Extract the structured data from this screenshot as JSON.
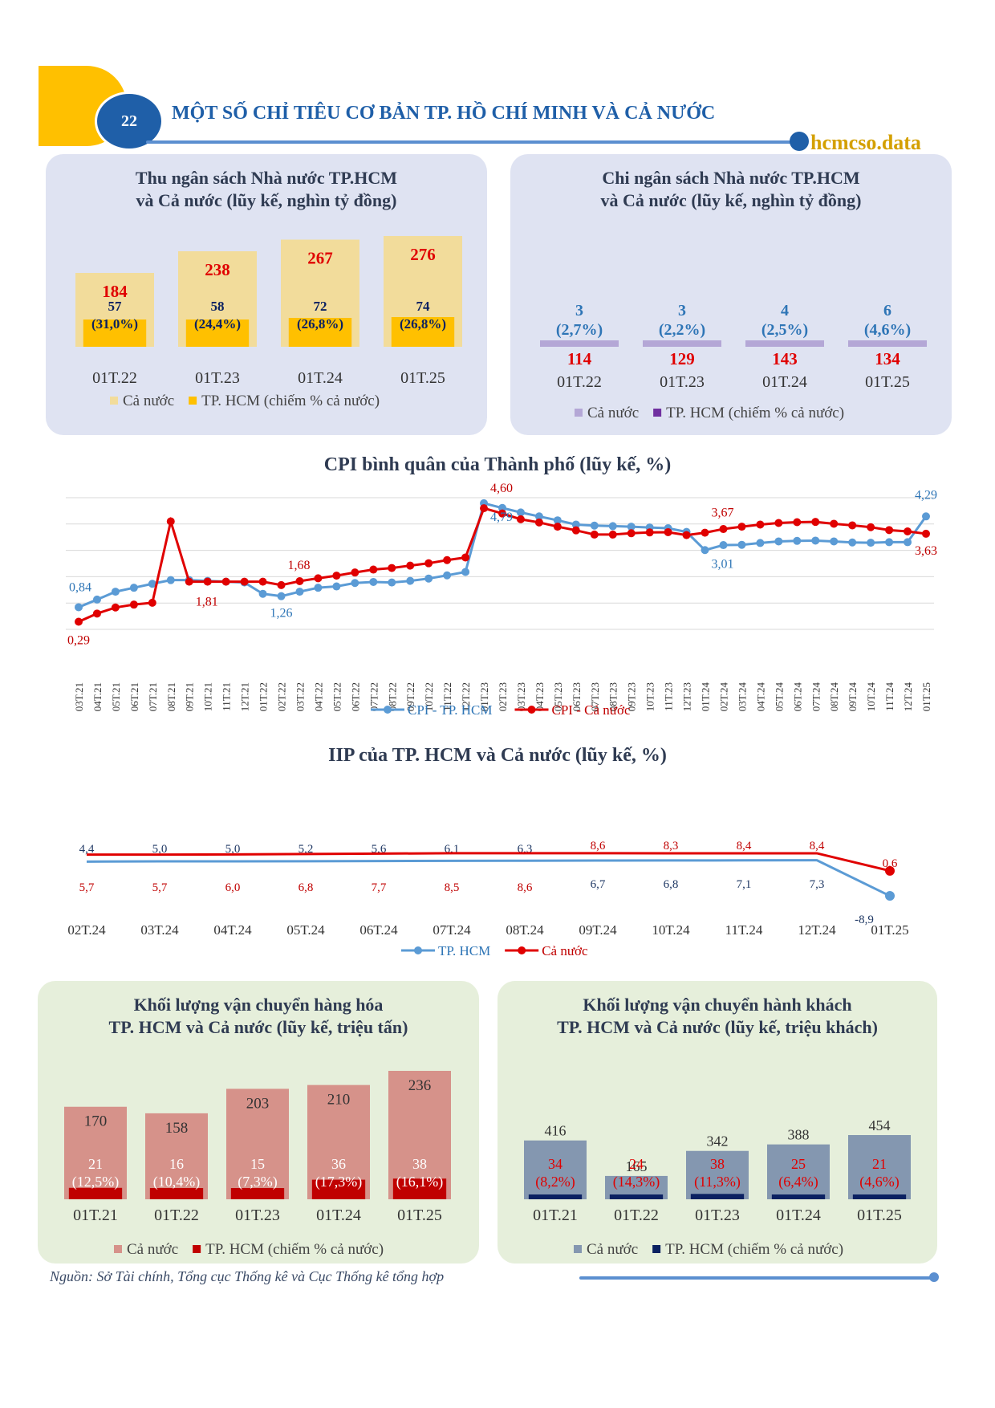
{
  "header": {
    "page_number": "22",
    "title": "MỘT SỐ CHỈ TIÊU CƠ BẢN TP. HỒ CHÍ MINH VÀ CẢ NƯỚC",
    "brand": "hcmcso.data",
    "accent": "#1f5fa8",
    "tab_color": "#ffc000"
  },
  "chart_data": [
    {
      "type": "bar",
      "title": "Thu ngân sách Nhà nước TP.HCM\nvà Cả nước (lũy kế, nghìn tỷ đồng)",
      "categories": [
        "01T.22",
        "01T.23",
        "01T.24",
        "01T.25"
      ],
      "series": [
        {
          "name": "Cả nước",
          "values": [
            184,
            238,
            267,
            276
          ],
          "color": "#f2dc9b"
        },
        {
          "name": "TP. HCM (chiếm % cả nước)",
          "values": [
            57,
            58,
            72,
            74
          ],
          "share": [
            "(31,0%)",
            "(24,4%)",
            "(26,8%)",
            "(26,8%)"
          ],
          "color": "#ffc000"
        }
      ]
    },
    {
      "type": "bar",
      "title": "Chi ngân sách Nhà nước TP.HCM\nvà Cả nước (lũy kế, nghìn tỷ đồng)",
      "categories": [
        "01T.22",
        "01T.23",
        "01T.24",
        "01T.25"
      ],
      "series": [
        {
          "name": "Cả nước",
          "values": [
            114,
            129,
            143,
            134
          ],
          "color": "#b4a7d6"
        },
        {
          "name": "TP. HCM (chiếm % cả nước)",
          "values": [
            3,
            3,
            4,
            6
          ],
          "share": [
            "(2,7%)",
            "(2,2%)",
            "(2,5%)",
            "(4,6%)"
          ],
          "color": "#7030a0"
        }
      ]
    },
    {
      "type": "line",
      "title": "CPI bình quân của Thành phố (lũy kế, %)",
      "categories": [
        "03T.21",
        "04T.21",
        "05T.21",
        "06T.21",
        "07T.21",
        "08T.21",
        "09T.21",
        "10T.21",
        "11T.21",
        "12T.21",
        "01T.22",
        "02T.22",
        "03T.22",
        "04T.22",
        "05T.22",
        "06T.22",
        "07T.22",
        "08T.22",
        "09T.22",
        "10T.22",
        "11T.22",
        "12T.22",
        "01T.23",
        "02T.23",
        "03T.23",
        "04T.23",
        "05T.23",
        "06T.23",
        "07T.23",
        "08T.23",
        "09T.23",
        "10T.23",
        "11T.23",
        "12T.23",
        "01T.24",
        "02T.24",
        "03T.24",
        "04T.24",
        "05T.24",
        "06T.24",
        "07T.24",
        "08T.24",
        "09T.24",
        "10T.24",
        "11T.24",
        "12T.24",
        "01T.25"
      ],
      "series": [
        {
          "name": "CPI - TP. HCM",
          "color": "#5b9bd5",
          "values": [
            0.84,
            1.13,
            1.43,
            1.58,
            1.73,
            1.87,
            1.87,
            1.84,
            1.81,
            1.78,
            1.35,
            1.26,
            1.43,
            1.58,
            1.63,
            1.76,
            1.8,
            1.78,
            1.84,
            1.93,
            2.05,
            2.18,
            4.79,
            4.61,
            4.44,
            4.29,
            4.14,
            3.98,
            3.94,
            3.92,
            3.9,
            3.87,
            3.84,
            3.7,
            3.01,
            3.2,
            3.21,
            3.28,
            3.34,
            3.36,
            3.37,
            3.34,
            3.3,
            3.29,
            3.31,
            3.31,
            4.29
          ]
        },
        {
          "name": "CPI - Cả nước",
          "color": "#e00000",
          "values": [
            0.29,
            0.6,
            0.83,
            0.94,
            1.01,
            4.1,
            1.81,
            1.81,
            1.81,
            1.81,
            1.81,
            1.68,
            1.83,
            1.94,
            2.04,
            2.16,
            2.27,
            2.33,
            2.42,
            2.51,
            2.63,
            2.73,
            4.6,
            4.4,
            4.18,
            4.06,
            3.9,
            3.76,
            3.6,
            3.6,
            3.65,
            3.68,
            3.69,
            3.58,
            3.67,
            3.81,
            3.9,
            3.98,
            4.04,
            4.07,
            4.08,
            4.01,
            3.95,
            3.88,
            3.77,
            3.72,
            3.63
          ]
        }
      ],
      "point_labels": [
        {
          "series": "CPI - TP. HCM",
          "category": "03T.21",
          "text": "0,84"
        },
        {
          "series": "CPI - TP. HCM",
          "category": "02T.22",
          "text": "1,26"
        },
        {
          "series": "CPI - TP. HCM",
          "category": "01T.23",
          "text": "4,79"
        },
        {
          "series": "CPI - TP. HCM",
          "category": "01T.24",
          "text": "3,01"
        },
        {
          "series": "CPI - TP. HCM",
          "category": "01T.25",
          "text": "4,29"
        },
        {
          "series": "CPI - Cả nước",
          "category": "03T.21",
          "text": "0,29"
        },
        {
          "series": "CPI - Cả nước",
          "category": "09T.21",
          "text": "1,81"
        },
        {
          "series": "CPI - Cả nước",
          "category": "02T.22",
          "text": "1,68"
        },
        {
          "series": "CPI - Cả nước",
          "category": "01T.23",
          "text": "4,60"
        },
        {
          "series": "CPI - Cả nước",
          "category": "01T.24",
          "text": "3,67"
        },
        {
          "series": "CPI - Cả nước",
          "category": "01T.25",
          "text": "3,63"
        }
      ]
    },
    {
      "type": "line",
      "title": "IIP của TP. HCM và Cả nước (lũy kế, %)",
      "categories": [
        "02T.24",
        "03T.24",
        "04T.24",
        "05T.24",
        "06T.24",
        "07T.24",
        "08T.24",
        "09T.24",
        "10T.24",
        "11T.24",
        "12T.24",
        "01T.25"
      ],
      "series": [
        {
          "name": "TP. HCM",
          "color": "#5b9bd5",
          "values": [
            4.4,
            5.0,
            5.0,
            5.2,
            5.6,
            6.1,
            6.3,
            6.7,
            6.8,
            7.1,
            7.3,
            -8.9
          ],
          "labels": [
            "4,4",
            "5,0",
            "5,0",
            "5,2",
            "5,6",
            "6,1",
            "6,3",
            "6,7",
            "6,8",
            "7,1",
            "7,3",
            "-8,9"
          ]
        },
        {
          "name": "Cả nước",
          "color": "#e00000",
          "values": [
            5.7,
            5.7,
            6.0,
            6.8,
            7.7,
            8.5,
            8.6,
            8.6,
            8.3,
            8.4,
            8.4,
            0.6
          ],
          "labels": [
            "5,7",
            "5,7",
            "6,0",
            "6,8",
            "7,7",
            "8,5",
            "8,6",
            "8,6",
            "8,3",
            "8,4",
            "8,4",
            "0,6"
          ]
        }
      ]
    },
    {
      "type": "bar",
      "title": "Khối lượng vận chuyển hàng hóa\nTP. HCM và Cả nước (lũy kế, triệu tấn)",
      "categories": [
        "01T.21",
        "01T.22",
        "01T.23",
        "01T.24",
        "01T.25"
      ],
      "series": [
        {
          "name": "Cả nước",
          "values": [
            170,
            158,
            203,
            210,
            236
          ],
          "color": "#d6928a"
        },
        {
          "name": "TP. HCM (chiếm % cả nước)",
          "values": [
            21,
            16,
            15,
            36,
            38
          ],
          "share": [
            "(12,5%)",
            "(10,4%)",
            "(7,3%)",
            "(17,3%)",
            "(16,1%)"
          ],
          "color": "#c00000"
        }
      ]
    },
    {
      "type": "bar",
      "title": "Khối lượng vận chuyển hành khách\nTP. HCM và Cả nước (lũy kế, triệu khách)",
      "categories": [
        "01T.21",
        "01T.22",
        "01T.23",
        "01T.24",
        "01T.25"
      ],
      "series": [
        {
          "name": "Cả nước",
          "values": [
            416,
            165,
            342,
            388,
            454
          ],
          "color": "#8497b0"
        },
        {
          "name": "TP. HCM (chiếm % cả nước)",
          "values": [
            34,
            24,
            38,
            25,
            21
          ],
          "share": [
            "(8,2%)",
            "(14,3%)",
            "(11,3%)",
            "(6,4%)",
            "(4,6%)"
          ],
          "color": "#0b2161"
        }
      ]
    }
  ],
  "footer": {
    "source": "Nguồn: Sở Tài chính, Tổng cục Thống kê và Cục Thống kê tổng hợp"
  }
}
